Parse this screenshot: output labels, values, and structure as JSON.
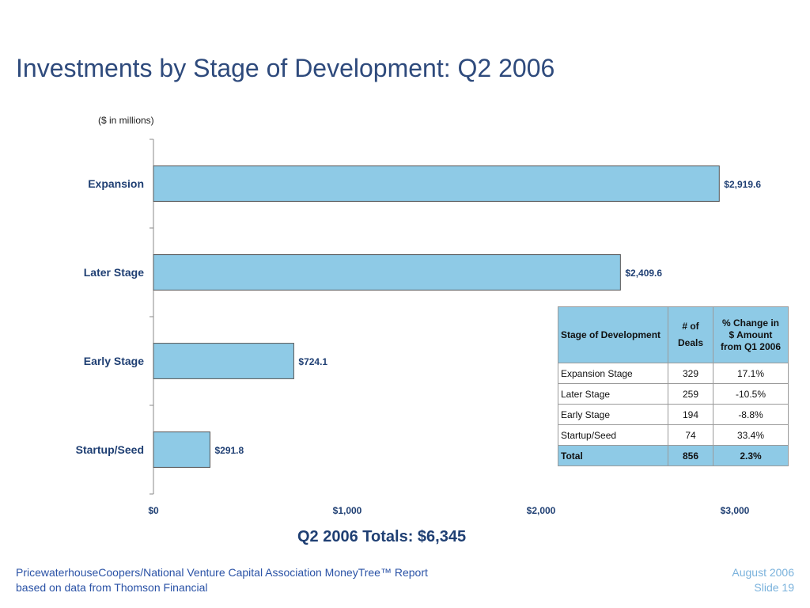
{
  "slide": {
    "title": "Investments by Stage of Development: Q2 2006",
    "units_note": "($ in millions)",
    "totals_label": "Q2 2006 Totals: $6,345",
    "footer_left_line1": "PricewaterhouseCoopers/National Venture Capital Association MoneyTree™ Report",
    "footer_left_line2": "based on data from Thomson Financial",
    "footer_right_line1": "August 2006",
    "footer_right_line2": "Slide 19"
  },
  "colors": {
    "title": "#2e4a7c",
    "bar_fill": "#8ecae6",
    "bar_stroke": "#555555",
    "table_header": "#8ecae6",
    "footer_left": "#2a52a6",
    "footer_right": "#7ab2dc"
  },
  "chart_data": {
    "type": "bar",
    "orientation": "horizontal",
    "title": "",
    "xlabel": "",
    "ylabel": "",
    "categories": [
      "Expansion",
      "Later Stage",
      "Early Stage",
      "Startup/Seed"
    ],
    "values": [
      2919.6,
      2409.6,
      724.1,
      291.8
    ],
    "value_labels": [
      "$2,919.6",
      "$2,409.6",
      "$724.1",
      "$291.8"
    ],
    "xlim": [
      0,
      3000
    ],
    "x_ticks": [
      0,
      1000,
      2000,
      3000
    ],
    "x_tick_labels": [
      "$0",
      "$1,000",
      "$2,000",
      "$3,000"
    ],
    "grid": false,
    "legend": "none"
  },
  "table": {
    "headers": {
      "stage": "Stage of Development",
      "deals_line1": "# of",
      "deals_line2": "Deals",
      "change_line1": "% Change in",
      "change_line2": "$ Amount",
      "change_line3": "from Q1 2006"
    },
    "rows": [
      {
        "stage": "Expansion Stage",
        "deals": "329",
        "change": "17.1%"
      },
      {
        "stage": "Later Stage",
        "deals": "259",
        "change": "-10.5%"
      },
      {
        "stage": "Early Stage",
        "deals": "194",
        "change": "-8.8%"
      },
      {
        "stage": "Startup/Seed",
        "deals": "74",
        "change": "33.4%"
      }
    ],
    "total": {
      "stage": "Total",
      "deals": "856",
      "change": "2.3%"
    }
  }
}
